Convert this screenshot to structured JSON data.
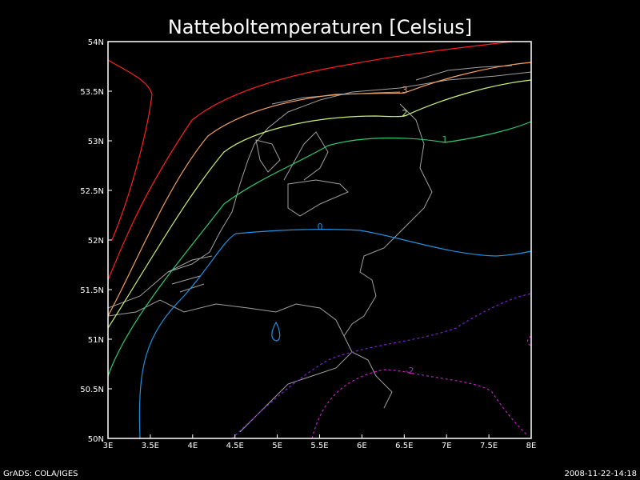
{
  "title": "Natteboltemperaturen [Celsius]",
  "map": {
    "xlim": [
      3,
      8
    ],
    "ylim": [
      50,
      54
    ],
    "xticks": [
      {
        "value": 3,
        "label": "3E"
      },
      {
        "value": 3.5,
        "label": "3.5E"
      },
      {
        "value": 4,
        "label": "4E"
      },
      {
        "value": 4.5,
        "label": "4.5E"
      },
      {
        "value": 5,
        "label": "5E"
      },
      {
        "value": 5.5,
        "label": "5.5E"
      },
      {
        "value": 6,
        "label": "6E"
      },
      {
        "value": 6.5,
        "label": "6.5E"
      },
      {
        "value": 7,
        "label": "7E"
      },
      {
        "value": 7.5,
        "label": "7.5E"
      },
      {
        "value": 8,
        "label": "8E"
      }
    ],
    "yticks": [
      {
        "value": 50,
        "label": "50N"
      },
      {
        "value": 50.5,
        "label": "50.5N"
      },
      {
        "value": 51,
        "label": "51N"
      },
      {
        "value": 51.5,
        "label": "51.5N"
      },
      {
        "value": 52,
        "label": "52N"
      },
      {
        "value": 52.5,
        "label": "52.5N"
      },
      {
        "value": 53,
        "label": "53N"
      },
      {
        "value": 53.5,
        "label": "53.5N"
      },
      {
        "value": 54,
        "label": "54N"
      }
    ],
    "contours": [
      {
        "color": "#ff2020"
      },
      {
        "level": 3,
        "color": "#f0a060"
      },
      {
        "level": 2,
        "color": "#c8f070"
      },
      {
        "level": 1,
        "color": "#30c870"
      },
      {
        "level": 0,
        "color": "#2090e0"
      },
      {
        "color": "#8020d0",
        "dashed": true
      },
      {
        "level": -2,
        "color": "#c020c0",
        "dashed": true
      }
    ]
  },
  "footer": {
    "left": "GrADS: COLA/IGES",
    "right": "2008-11-22-14:18"
  }
}
